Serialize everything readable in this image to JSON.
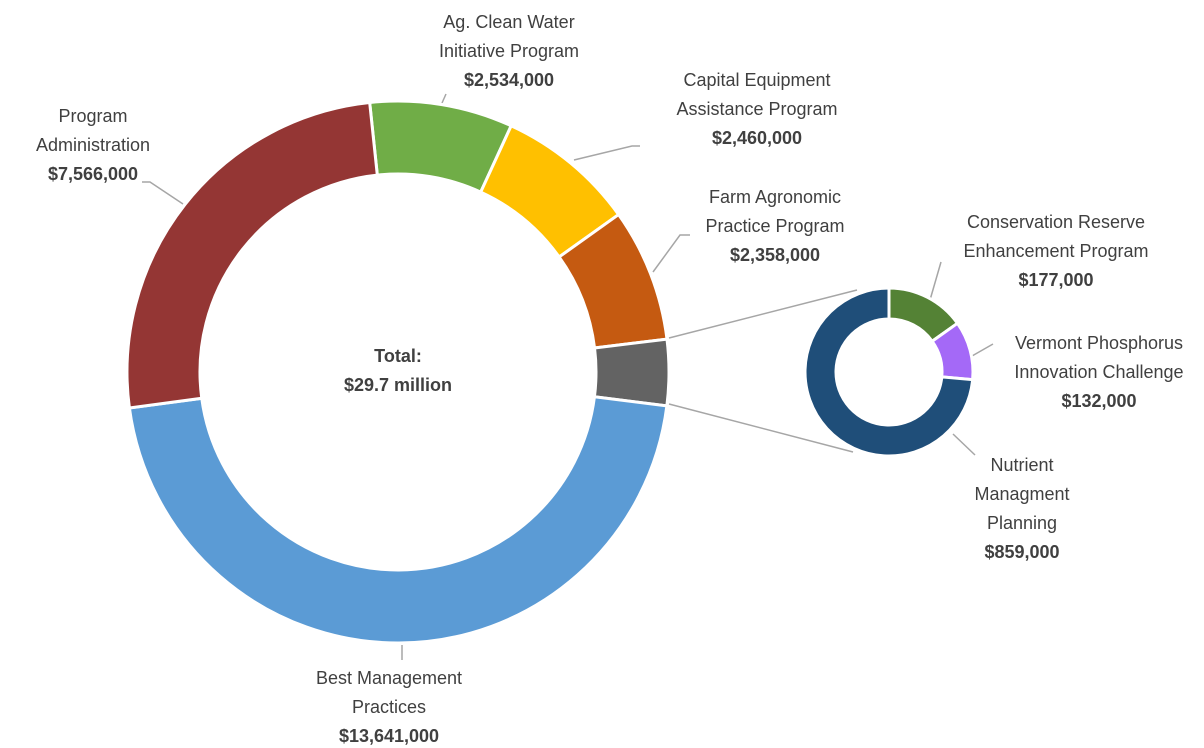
{
  "chart_data": {
    "type": "donut",
    "center_label": "Total:",
    "center_value": "$29.7 million",
    "categories": [
      "Ag. Clean Water Initiative Program",
      "Capital Equipment Assistance Program",
      "Farm Agronomic Practice Program",
      null,
      "Best Management Practices",
      "Program Administration"
    ],
    "values": [
      2534000,
      2460000,
      2358000,
      1168000,
      13641000,
      7566000
    ],
    "value_labels": [
      "$2,534,000",
      "$2,460,000",
      "$2,358,000",
      null,
      "$13,641,000",
      "$7,566,000"
    ],
    "colors": [
      "#70ad47",
      "#ffc000",
      "#c55a11",
      "#636363",
      "#5b9bd5",
      "#943634"
    ],
    "sub": {
      "type": "donut",
      "categories": [
        "Conservation Reserve Enhancement Program",
        "Vermont Phosphorus Innovation Challenge",
        "Nutrient Managment Planning"
      ],
      "values": [
        177000,
        132000,
        859000
      ],
      "value_labels": [
        "$177,000",
        "$132,000",
        "$859,000"
      ],
      "colors": [
        "#548235",
        "#a469f7",
        "#1f4e79"
      ]
    }
  }
}
